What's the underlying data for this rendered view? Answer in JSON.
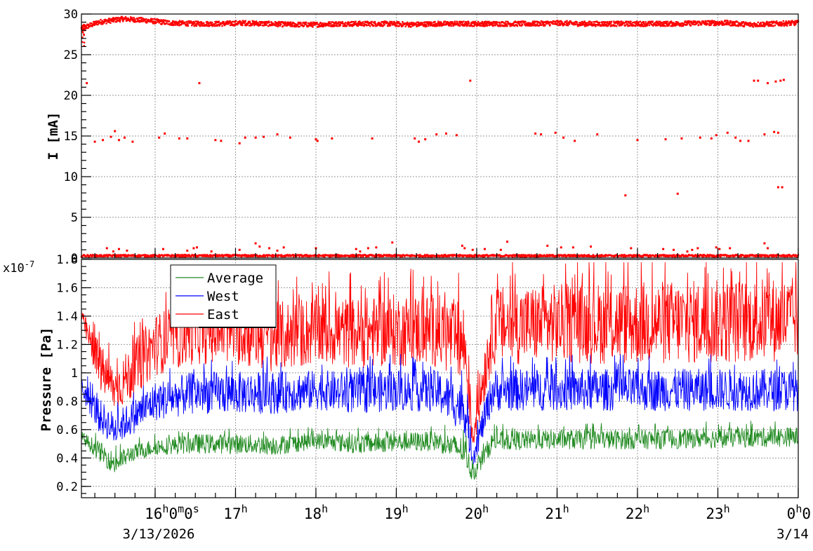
{
  "chart_data": [
    {
      "type": "scatter",
      "ylabel": "I [mA]",
      "xlim": [
        "2026-03-13T15:05",
        "2026-03-14T00:00"
      ],
      "ylim": [
        0,
        30
      ],
      "yticks": [
        "0",
        "5",
        "10",
        "15",
        "20",
        "25",
        "30"
      ],
      "grid": true,
      "color": "#ff0000",
      "series": [
        {
          "x_hours": [
            15.08,
            15.3,
            15.6,
            15.9,
            16.2,
            16.5,
            16.8,
            17.1,
            17.4,
            17.7,
            18.0,
            18.3,
            18.6,
            18.9,
            19.2,
            19.5,
            19.8,
            20.1,
            20.4,
            20.7,
            21.0,
            21.3,
            21.6,
            21.9,
            22.2,
            22.5,
            22.8,
            23.1,
            23.4,
            23.7,
            23.99
          ],
          "y": [
            28.2,
            29.0,
            29.4,
            29.2,
            28.9,
            28.8,
            28.8,
            28.9,
            28.8,
            28.7,
            28.7,
            28.8,
            28.8,
            28.8,
            28.7,
            28.8,
            28.8,
            28.8,
            28.8,
            28.8,
            28.9,
            28.8,
            28.8,
            28.8,
            28.8,
            28.8,
            28.9,
            28.9,
            28.7,
            28.8,
            28.9
          ]
        },
        {
          "x_hours": [
            15.25,
            15.35,
            15.45,
            15.5,
            15.55,
            15.62,
            15.72,
            16.05,
            16.12,
            16.3,
            16.4,
            16.75,
            16.82,
            17.05,
            17.12,
            17.25,
            17.35,
            17.52,
            17.68,
            18.0,
            18.02,
            18.2,
            18.7,
            19.23,
            19.28,
            19.36,
            19.5,
            19.62,
            19.75,
            20.73,
            20.8,
            20.98,
            21.08,
            21.22,
            21.5,
            22.0,
            22.35,
            22.55,
            22.78,
            22.92,
            22.98,
            23.12,
            23.22,
            23.28,
            23.38,
            23.58,
            23.7,
            23.75
          ],
          "y": [
            14.3,
            14.5,
            14.9,
            15.6,
            14.5,
            14.8,
            14.3,
            14.8,
            15.3,
            14.7,
            14.7,
            14.5,
            14.4,
            14.1,
            14.8,
            14.8,
            14.9,
            15.2,
            14.8,
            14.6,
            14.4,
            14.7,
            14.7,
            14.7,
            14.3,
            14.6,
            15.2,
            15.3,
            15.1,
            15.3,
            15.2,
            15.4,
            14.8,
            14.4,
            15.2,
            14.5,
            14.6,
            14.7,
            14.8,
            14.7,
            15.1,
            15.4,
            14.8,
            14.4,
            14.4,
            15.2,
            15.5,
            15.4
          ]
        },
        {
          "x_hours": [
            15.15,
            16.55,
            19.92,
            23.45,
            23.5,
            23.62,
            23.72,
            23.78,
            23.82,
            21.85,
            22.5,
            23.75,
            23.8
          ],
          "y": [
            21.5,
            21.5,
            21.8,
            21.8,
            21.8,
            21.5,
            21.7,
            21.8,
            21.9,
            7.7,
            7.9,
            8.7,
            8.7
          ]
        },
        {
          "x_hours": [
            15.4,
            15.48,
            15.55,
            15.65,
            16.1,
            16.4,
            16.48,
            16.52,
            16.7,
            17.05,
            17.25,
            17.3,
            17.42,
            17.52,
            17.6,
            18.0,
            18.5,
            18.55,
            18.65,
            18.75,
            18.95,
            19.82,
            19.85,
            19.95,
            20.1,
            20.3,
            20.38,
            20.88,
            21.05,
            21.2,
            21.42,
            21.92,
            22.32,
            22.45,
            22.62,
            22.68,
            22.75,
            22.98,
            23.02,
            23.15,
            23.58,
            23.62
          ],
          "y": [
            1.2,
            0.8,
            1.1,
            0.9,
            1.1,
            0.9,
            1.2,
            1.3,
            0.8,
            1.0,
            1.8,
            1.4,
            1.2,
            0.9,
            1.3,
            1.2,
            1.1,
            0.8,
            1.2,
            1.3,
            1.9,
            1.5,
            1.2,
            1.0,
            1.1,
            1.0,
            2.0,
            1.5,
            1.3,
            1.3,
            1.4,
            1.2,
            1.1,
            1.0,
            0.8,
            1.0,
            1.2,
            1.3,
            1.1,
            1.2,
            1.8,
            1.2
          ]
        }
      ]
    },
    {
      "type": "line",
      "ylabel": "Pressure [Pa]",
      "ylim": [
        0.12,
        1.8
      ],
      "yticks": [
        "0.2",
        "0.4",
        "0.6",
        "0.8",
        "1",
        "1.2",
        "1.4",
        "1.6",
        "1.8"
      ],
      "y_multiplier": "x10",
      "y_exponent": "-7",
      "grid": true,
      "legend_position": "top-left",
      "series": [
        {
          "name": "Average",
          "color": "#228b22",
          "x_hours": [
            15.08,
            15.3,
            15.5,
            15.7,
            16.0,
            16.5,
            17.0,
            17.5,
            18.0,
            18.5,
            19.0,
            19.5,
            19.85,
            19.95,
            20.2,
            21.0,
            22.0,
            23.0,
            24.0
          ],
          "mean": [
            0.55,
            0.45,
            0.36,
            0.43,
            0.48,
            0.5,
            0.5,
            0.49,
            0.52,
            0.5,
            0.51,
            0.52,
            0.45,
            0.28,
            0.52,
            0.53,
            0.53,
            0.54,
            0.55
          ],
          "spread": [
            0.04,
            0.07,
            0.08,
            0.06,
            0.06,
            0.07,
            0.07,
            0.07,
            0.06,
            0.07,
            0.07,
            0.07,
            0.1,
            0.06,
            0.07,
            0.07,
            0.07,
            0.07,
            0.07
          ]
        },
        {
          "name": "West",
          "color": "#0000ff",
          "x_hours": [
            15.08,
            15.3,
            15.5,
            15.7,
            16.0,
            16.5,
            17.0,
            17.5,
            18.0,
            18.5,
            19.0,
            19.5,
            19.85,
            19.95,
            20.2,
            21.0,
            22.0,
            23.0,
            24.0
          ],
          "mean": [
            0.9,
            0.7,
            0.6,
            0.68,
            0.8,
            0.86,
            0.86,
            0.86,
            0.88,
            0.86,
            0.88,
            0.87,
            0.75,
            0.4,
            0.88,
            0.88,
            0.88,
            0.88,
            0.88
          ],
          "spread": [
            0.08,
            0.12,
            0.12,
            0.12,
            0.14,
            0.15,
            0.15,
            0.15,
            0.14,
            0.15,
            0.15,
            0.15,
            0.18,
            0.08,
            0.15,
            0.15,
            0.15,
            0.15,
            0.15
          ]
        },
        {
          "name": "East",
          "color": "#ff0000",
          "x_hours": [
            15.08,
            15.3,
            15.5,
            15.7,
            16.0,
            16.5,
            17.0,
            17.5,
            18.0,
            18.5,
            19.0,
            19.5,
            19.85,
            19.95,
            20.2,
            21.0,
            22.0,
            23.0,
            24.0
          ],
          "mean": [
            1.4,
            1.05,
            0.88,
            1.0,
            1.2,
            1.3,
            1.3,
            1.25,
            1.3,
            1.28,
            1.3,
            1.3,
            1.2,
            0.55,
            1.33,
            1.35,
            1.35,
            1.36,
            1.38
          ],
          "spread": [
            0.05,
            0.18,
            0.15,
            0.2,
            0.22,
            0.24,
            0.25,
            0.25,
            0.25,
            0.25,
            0.26,
            0.26,
            0.3,
            0.12,
            0.28,
            0.28,
            0.3,
            0.3,
            0.3
          ]
        }
      ]
    }
  ],
  "x_tick_labels": [
    "16^h0^m0^s",
    "17^h",
    "18^h",
    "19^h",
    "20^h",
    "21^h",
    "22^h",
    "23^h",
    "0^h0"
  ],
  "x_date_labels": [
    "3/13/2026",
    "3/14"
  ],
  "legend": {
    "average": "Average",
    "west": "West",
    "east": "East"
  }
}
